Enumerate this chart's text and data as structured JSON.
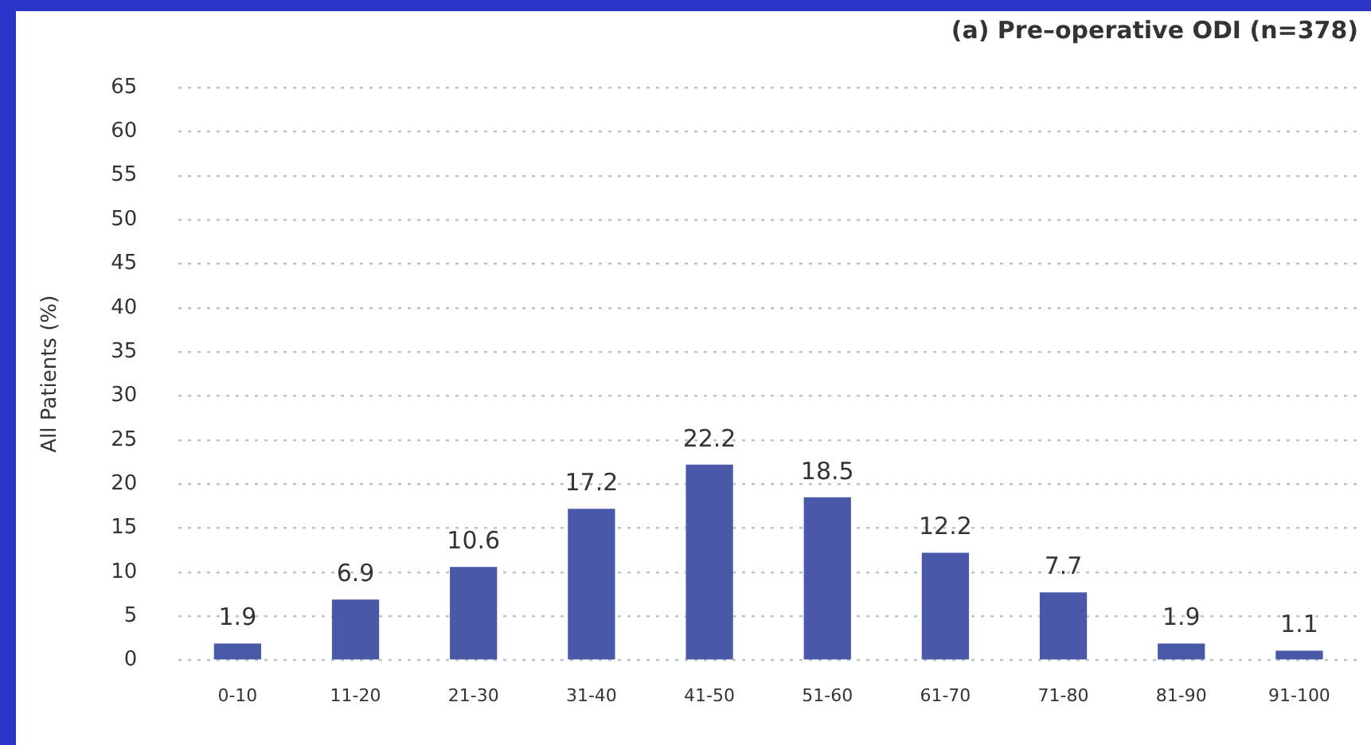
{
  "chart_data": {
    "type": "bar",
    "title": "(a) Pre–operative ODI (n=378)",
    "ylabel": "All Patients (%)",
    "categories": [
      "0-10",
      "11-20",
      "21-30",
      "31-40",
      "41-50",
      "51-60",
      "61-70",
      "71-80",
      "81-90",
      "91-100"
    ],
    "values": [
      1.9,
      6.9,
      10.6,
      17.2,
      22.2,
      18.5,
      12.2,
      7.7,
      1.9,
      1.1
    ],
    "color": "#4a58a8",
    "ylim": [
      0,
      65
    ],
    "yticks": [
      0,
      5,
      10,
      15,
      20,
      25,
      30,
      35,
      40,
      45,
      50,
      55,
      60,
      65
    ],
    "grid": "y",
    "data_labels": true,
    "legend": false
  }
}
